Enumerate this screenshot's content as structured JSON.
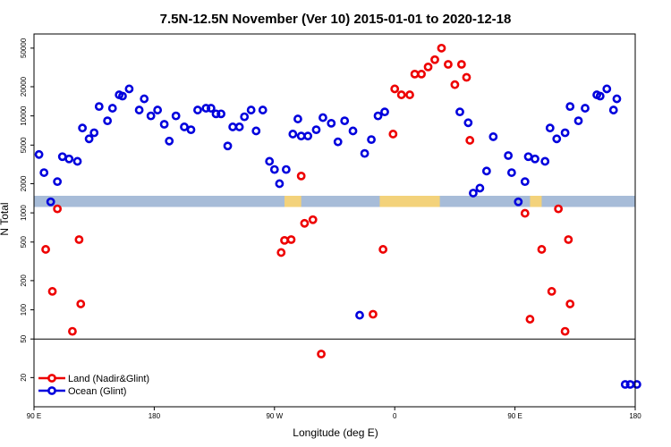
{
  "chart_data": {
    "type": "scatter",
    "title": "7.5N-12.5N November (Ver 10)   2015-01-01 to 2020-12-18",
    "xlabel": "Longitude (deg E)",
    "ylabel": "N Total",
    "xlim": [
      90,
      450
    ],
    "ylim": [
      10,
      70000
    ],
    "yscale": "log",
    "grid": false,
    "legend_position": "bottom-left",
    "x_ticks": [
      {
        "value": 90,
        "label": "90 E"
      },
      {
        "value": 162,
        "label": "180"
      },
      {
        "value": 234,
        "label": "90 W"
      },
      {
        "value": 306,
        "label": "0"
      },
      {
        "value": 378,
        "label": "90 E"
      },
      {
        "value": 450,
        "label": "180"
      }
    ],
    "y_ticks": [
      {
        "value": 20,
        "label": "20"
      },
      {
        "value": 50,
        "label": "50"
      },
      {
        "value": 100,
        "label": "100"
      },
      {
        "value": 200,
        "label": "200"
      },
      {
        "value": 500,
        "label": "500"
      },
      {
        "value": 1000,
        "label": "1000"
      },
      {
        "value": 2000,
        "label": "2000"
      },
      {
        "value": 5000,
        "label": "5000"
      },
      {
        "value": 10000,
        "label": "10000"
      },
      {
        "value": 20000,
        "label": "20000"
      },
      {
        "value": 50000,
        "label": "50000"
      }
    ],
    "reference_line": 50,
    "map_band": {
      "ymin": 1150,
      "ymax": 1500,
      "ocean_color": "#a7bcd8",
      "land_color": "#f3d27b"
    },
    "land_segments": [
      [
        240,
        250
      ],
      [
        297,
        333
      ],
      [
        387,
        394
      ]
    ],
    "series": [
      {
        "name": "Land (Nadir&Glint)",
        "color": "#ee0000",
        "x": [
          97,
          101,
          104,
          113,
          117,
          118,
          299,
          305,
          262,
          238,
          240,
          244,
          250,
          252,
          257,
          293,
          306,
          310,
          315,
          318,
          322,
          326,
          330,
          334,
          338,
          342,
          346,
          349,
          351,
          384,
          387,
          394,
          400,
          404,
          408,
          410,
          411
        ],
        "y": [
          420,
          155,
          1100,
          60,
          530,
          115,
          420,
          6500,
          35,
          390,
          520,
          530,
          2400,
          780,
          850,
          90,
          19000,
          16500,
          16500,
          27000,
          27000,
          32000,
          38000,
          50000,
          34000,
          21000,
          34000,
          25000,
          5600,
          990,
          80,
          420,
          155,
          1100,
          60,
          530,
          115
        ]
      },
      {
        "name": "Ocean (Glint)",
        "color": "#0000dd",
        "x": [
          93,
          96,
          100,
          104,
          107,
          111,
          116,
          119,
          123,
          126,
          129,
          134,
          137,
          141,
          143,
          147,
          153,
          156,
          160,
          164,
          168,
          171,
          175,
          180,
          184,
          188,
          193,
          196,
          199,
          202,
          206,
          209,
          213,
          216,
          220,
          223,
          227,
          231,
          234,
          237,
          241,
          245,
          248,
          250,
          254,
          259,
          263,
          268,
          272,
          276,
          281,
          285,
          288,
          292,
          296,
          300,
          345,
          350,
          353,
          357,
          361,
          365,
          374,
          376,
          380,
          384,
          386,
          390,
          396,
          399,
          403,
          408,
          411,
          416,
          420,
          427,
          429,
          433,
          437,
          439,
          444,
          447,
          451
        ],
        "y": [
          4000,
          2600,
          1300,
          2100,
          3800,
          3600,
          3400,
          7500,
          5800,
          6700,
          12500,
          8900,
          12000,
          16500,
          16000,
          19000,
          11500,
          15000,
          10000,
          11500,
          8200,
          5500,
          10000,
          7700,
          7200,
          11500,
          12000,
          12000,
          10500,
          10500,
          4900,
          7700,
          7700,
          9800,
          11500,
          7000,
          11500,
          3400,
          2800,
          2000,
          2800,
          6500,
          9300,
          6200,
          6200,
          7200,
          9600,
          8400,
          5400,
          8900,
          7000,
          88,
          4100,
          5700,
          10000,
          11000,
          11000,
          8500,
          1600,
          1800,
          2700,
          6100,
          3900,
          2600,
          1300,
          2100,
          3800,
          3600,
          3400,
          7500,
          5800,
          6700,
          12500,
          8900,
          12000,
          16500,
          16000,
          19000,
          11500,
          15000,
          17,
          17,
          17
        ]
      }
    ]
  }
}
